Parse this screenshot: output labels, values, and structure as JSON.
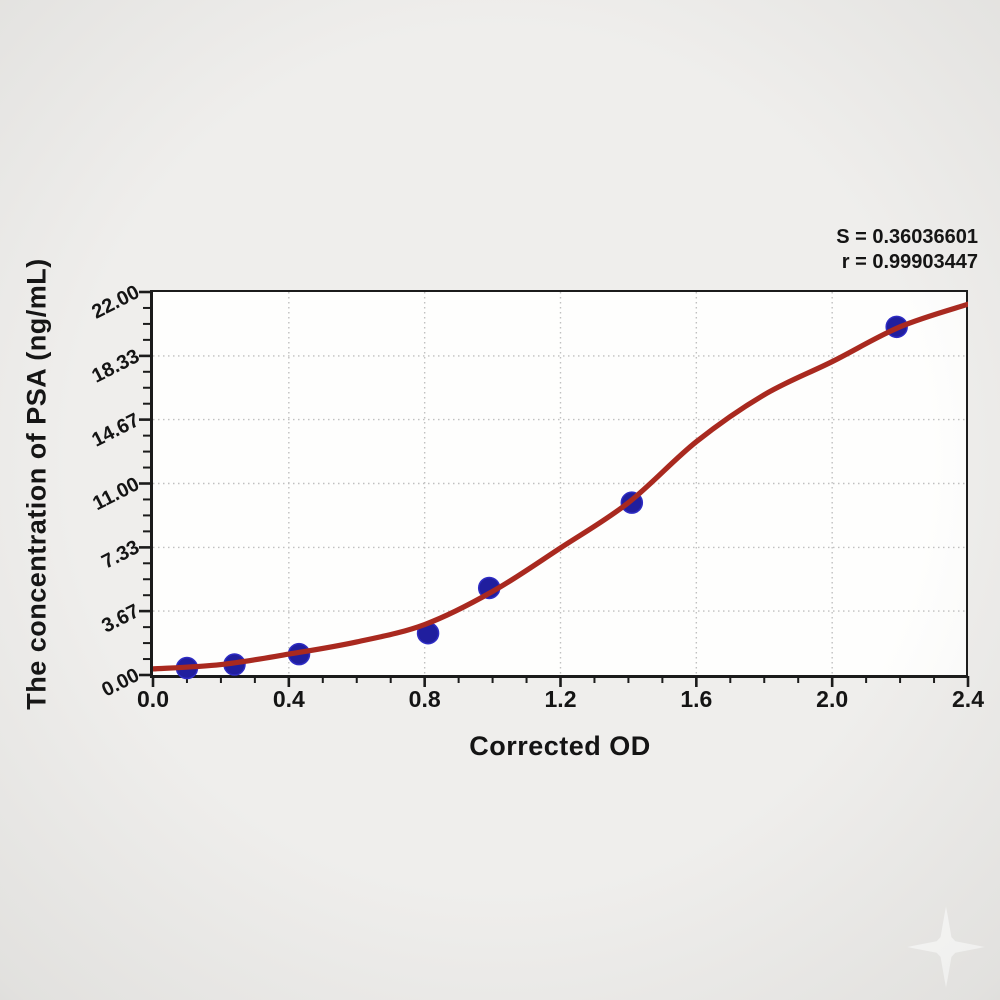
{
  "page": {
    "background": "#efeeec"
  },
  "annotation": {
    "s_value": "S = 0.36036601",
    "r_value": "r = 0.99903447"
  },
  "chart_data": {
    "type": "scatter",
    "title": "",
    "xlabel": "Corrected OD",
    "ylabel": "The concentration of PSA (ng/mL)",
    "xlim": [
      0.0,
      2.4
    ],
    "ylim": [
      0.0,
      22.0
    ],
    "x_ticks": [
      0.0,
      0.4,
      0.8,
      1.2,
      1.6,
      2.0,
      2.4
    ],
    "x_tick_labels": [
      "0.0",
      "0.4",
      "0.8",
      "1.2",
      "1.6",
      "2.0",
      "2.4"
    ],
    "y_ticks": [
      0.0,
      3.67,
      7.33,
      11.0,
      14.67,
      18.33,
      22.0
    ],
    "y_tick_labels": [
      "0.00",
      "3.67",
      "7.33",
      "11.00",
      "14.67",
      "18.33",
      "22.00"
    ],
    "x_minor_tick_step": 0.1,
    "y_minor_ticks_per_major_interval": 3,
    "grid": "dotted gridlines at major ticks",
    "legend": "none",
    "series": [
      {
        "name": "standard-points",
        "type": "scatter",
        "color": "#201e9e",
        "x": [
          0.1,
          0.24,
          0.43,
          0.81,
          0.99,
          1.41,
          2.19
        ],
        "y": [
          0.4,
          0.6,
          1.2,
          2.4,
          5.0,
          9.9,
          20.0
        ]
      },
      {
        "name": "fitted-standard-curve",
        "type": "line",
        "color": "#a9291f",
        "x": [
          0.0,
          0.2,
          0.4,
          0.6,
          0.8,
          1.0,
          1.2,
          1.4,
          1.6,
          1.8,
          2.0,
          2.2,
          2.4
        ],
        "y": [
          0.35,
          0.6,
          1.2,
          1.9,
          2.9,
          4.8,
          7.3,
          9.9,
          13.4,
          16.1,
          18.0,
          20.0,
          21.3
        ]
      }
    ],
    "annotations": [
      "S = 0.36036601",
      "r = 0.99903447"
    ]
  },
  "watermark": {
    "shape": "four-point-star-sparkle"
  },
  "colors": {
    "curve": "#a9291f",
    "points": "#201e9e",
    "point_edge": "#2e2cc4",
    "axis": "#1b1b1b",
    "grid": "#c0c0c0",
    "plot_bg": "#fefefd",
    "page_bg": "#efeeec",
    "text": "#141414"
  }
}
